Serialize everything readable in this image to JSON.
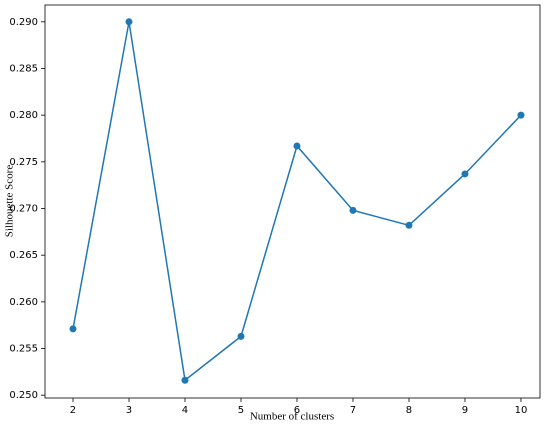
{
  "chart_data": {
    "type": "line",
    "x_label": "Number of clusters",
    "y_label": "Silhouette Score",
    "x": [
      2,
      3,
      4,
      5,
      6,
      7,
      8,
      9,
      10
    ],
    "series": [
      {
        "color": "#1f77b4",
        "values": [
          0.2571,
          0.29,
          0.2516,
          0.2563,
          0.2767,
          0.2698,
          0.2682,
          0.2737,
          0.28
        ]
      }
    ],
    "xlim": [
      1.5,
      10.34
    ],
    "ylim": [
      0.2497,
      0.2918
    ],
    "xticks": [
      2,
      3,
      4,
      5,
      6,
      7,
      8,
      9,
      10
    ],
    "yticks": [
      {
        "value": 0.25,
        "label": "0.250"
      },
      {
        "value": 0.255,
        "label": "0.255"
      },
      {
        "value": 0.26,
        "label": "0.260"
      },
      {
        "value": 0.265,
        "label": "0.265"
      },
      {
        "value": 0.27,
        "label": "0.270"
      },
      {
        "value": 0.275,
        "label": "0.275"
      },
      {
        "value": 0.28,
        "label": "0.280"
      },
      {
        "value": 0.285,
        "label": "0.285"
      },
      {
        "value": 0.29,
        "label": "0.290"
      }
    ],
    "markers": true
  }
}
